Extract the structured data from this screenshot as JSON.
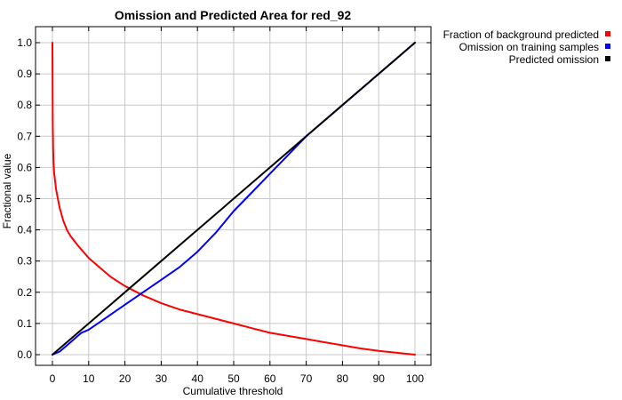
{
  "chart_data": {
    "type": "line",
    "title": "Omission and Predicted Area for red_92",
    "xlabel": "Cumulative threshold",
    "ylabel": "Fractional value",
    "xlim": [
      0,
      100
    ],
    "ylim": [
      0,
      1
    ],
    "grid": true,
    "legend_position": "top-right outside",
    "x_ticks": [
      "0",
      "10",
      "20",
      "30",
      "40",
      "50",
      "60",
      "70",
      "80",
      "90",
      "100"
    ],
    "y_ticks": [
      "0.0",
      "0.1",
      "0.2",
      "0.3",
      "0.4",
      "0.5",
      "0.6",
      "0.7",
      "0.8",
      "0.9",
      "1.0"
    ],
    "series": [
      {
        "name": "Fraction of background predicted",
        "color": "#ff0000",
        "x": [
          0,
          0.1,
          0.2,
          0.3,
          0.5,
          0.8,
          1,
          1.5,
          2,
          3,
          4,
          5,
          7,
          10,
          13,
          16,
          20,
          25,
          30,
          35,
          40,
          45,
          50,
          55,
          60,
          65,
          70,
          75,
          80,
          85,
          90,
          95,
          100
        ],
        "y": [
          1.0,
          0.73,
          0.66,
          0.62,
          0.58,
          0.55,
          0.53,
          0.5,
          0.47,
          0.43,
          0.4,
          0.38,
          0.35,
          0.31,
          0.28,
          0.25,
          0.22,
          0.19,
          0.165,
          0.145,
          0.13,
          0.115,
          0.1,
          0.085,
          0.07,
          0.06,
          0.05,
          0.04,
          0.03,
          0.02,
          0.012,
          0.006,
          0.0
        ]
      },
      {
        "name": "Omission on training samples",
        "color": "#0000ff",
        "x": [
          0,
          2,
          5,
          8,
          10,
          15,
          20,
          25,
          30,
          35,
          40,
          45,
          50,
          55,
          60,
          65,
          70,
          75,
          80,
          85,
          90,
          95,
          100
        ],
        "y": [
          0.0,
          0.01,
          0.04,
          0.07,
          0.08,
          0.12,
          0.16,
          0.2,
          0.24,
          0.28,
          0.33,
          0.39,
          0.46,
          0.52,
          0.58,
          0.64,
          0.7,
          0.75,
          0.8,
          0.85,
          0.9,
          0.95,
          1.0
        ]
      },
      {
        "name": "Predicted omission",
        "color": "#000000",
        "x": [
          0,
          100
        ],
        "y": [
          0,
          1
        ]
      }
    ]
  }
}
